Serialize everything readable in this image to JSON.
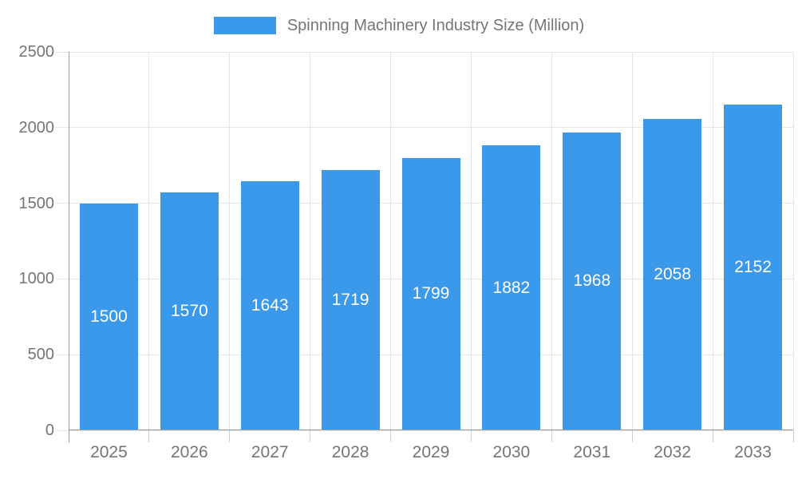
{
  "legend": {
    "label": "Spinning Machinery Industry Size (Million)"
  },
  "chart_data": {
    "type": "bar",
    "title": "Spinning Machinery Industry Size (Million)",
    "categories": [
      "2025",
      "2026",
      "2027",
      "2028",
      "2029",
      "2030",
      "2031",
      "2032",
      "2033"
    ],
    "values": [
      1500,
      1570,
      1643,
      1719,
      1799,
      1882,
      1968,
      2058,
      2152
    ],
    "xlabel": "",
    "ylabel": "",
    "ylim": [
      0,
      2500
    ],
    "yticks": [
      0,
      500,
      1000,
      1500,
      2000,
      2500
    ],
    "grid": true,
    "legend_position": "top",
    "value_labels": "inside-center"
  },
  "colors": {
    "bar": "#3B99EC",
    "value_label": "#FFFFFF",
    "axis_line": "#9A9A9A",
    "gridline": "#E5E5E5",
    "tick": "#D0D0D0",
    "text": "#757575",
    "background": "#FFFFFF"
  }
}
